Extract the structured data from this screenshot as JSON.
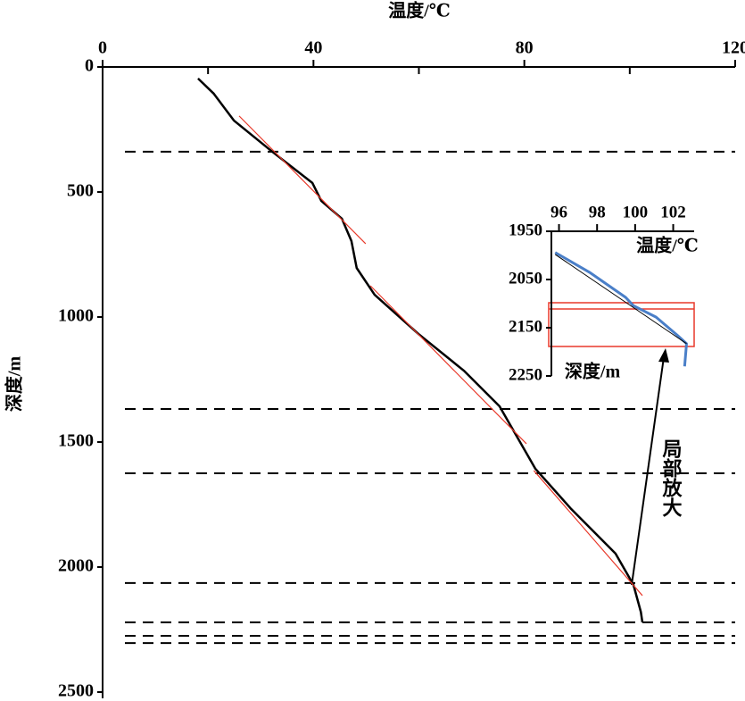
{
  "chart_data": [
    {
      "type": "line",
      "title": "温度/℃",
      "y_label": "深度/m",
      "xlim": [
        0,
        120
      ],
      "xticks": [
        0,
        40,
        80,
        120
      ],
      "xminor_ticks": [
        20,
        60,
        100
      ],
      "ylim": [
        0,
        2500
      ],
      "yticks": [
        0,
        500,
        1000,
        1500,
        2000,
        2500
      ],
      "y_inverted": true,
      "series": [
        {
          "color": "#000000",
          "width": 2.5,
          "x": [
            18.1,
            21.1,
            24.9,
            32.2,
            39.8,
            41.5,
            45.4,
            47.2,
            48.2,
            51.6,
            60.1,
            68.5,
            75.3,
            78.7,
            82.1,
            88.9,
            97.3,
            100.7,
            102.1,
            102.4
          ],
          "values": [
            46,
            107,
            214,
            339,
            464,
            536,
            607,
            696,
            804,
            911,
            1071,
            1214,
            1357,
            1482,
            1607,
            1768,
            1946,
            2071,
            2179,
            2221
          ]
        },
        {
          "color": "#e8392a",
          "width": 1.2,
          "x": [
            25.9,
            49.9
          ],
          "values": [
            196,
            707
          ]
        },
        {
          "color": "#e8392a",
          "width": 1.2,
          "x": [
            50.8,
            80.4
          ],
          "values": [
            875,
            1507
          ]
        },
        {
          "color": "#e8392a",
          "width": 1.2,
          "x": [
            81.8,
            102.4
          ],
          "values": [
            1614,
            2114
          ]
        }
      ],
      "reference_lines": [
        339,
        1368,
        1625,
        2064,
        2221,
        2275,
        2304
      ],
      "reference_color": "#000000",
      "annotation": "局部放大"
    },
    {
      "type": "line",
      "x_label": "温度/℃",
      "y_label": "深度/m",
      "xlim": [
        95.6,
        103.1
      ],
      "xticks": [
        96,
        98,
        100,
        102
      ],
      "ylim": [
        1950,
        2250
      ],
      "yticks": [
        1950,
        2050,
        2150,
        2250
      ],
      "y_inverted": true,
      "series": [
        {
          "color": "#4a7fc8",
          "width": 3,
          "x": [
            95.8,
            97.6,
            99.5,
            99.9,
            101.1,
            102.2,
            102.7,
            102.6
          ],
          "values": [
            1994,
            2035,
            2087,
            2104,
            2128,
            2165,
            2183,
            2230
          ]
        },
        {
          "color": "#000000",
          "width": 1,
          "x": [
            95.8,
            102.7
          ],
          "values": [
            1998,
            2183
          ]
        }
      ]
    }
  ]
}
